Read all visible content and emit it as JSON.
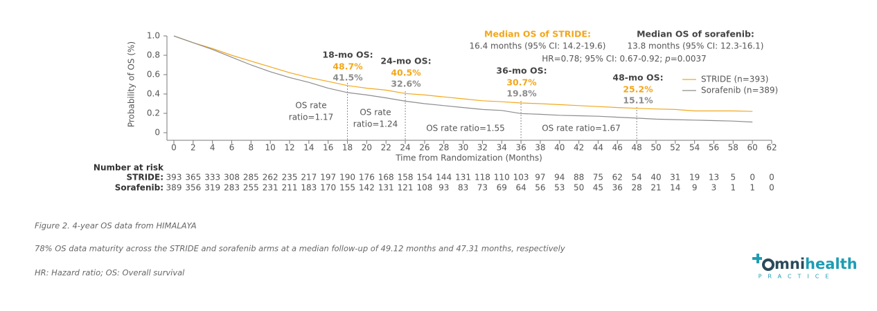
{
  "chart_data": {
    "type": "line",
    "x": [
      0,
      2,
      4,
      6,
      8,
      10,
      12,
      14,
      16,
      18,
      20,
      22,
      24,
      26,
      28,
      30,
      32,
      34,
      36,
      38,
      40,
      42,
      44,
      46,
      48,
      50,
      52,
      54,
      56,
      58,
      60
    ],
    "series": [
      {
        "name": "STRIDE (n=393)",
        "color": "#f2a71b",
        "values": [
          1.0,
          0.93,
          0.87,
          0.8,
          0.74,
          0.68,
          0.62,
          0.57,
          0.53,
          0.487,
          0.46,
          0.44,
          0.405,
          0.39,
          0.37,
          0.35,
          0.33,
          0.32,
          0.307,
          0.3,
          0.29,
          0.28,
          0.27,
          0.26,
          0.252,
          0.245,
          0.24,
          0.225,
          0.225,
          0.225,
          0.22
        ]
      },
      {
        "name": "Sorafenib (n=389)",
        "color": "#8c8c8c",
        "values": [
          1.0,
          0.93,
          0.86,
          0.78,
          0.7,
          0.63,
          0.57,
          0.52,
          0.46,
          0.415,
          0.39,
          0.36,
          0.326,
          0.3,
          0.28,
          0.26,
          0.24,
          0.23,
          0.198,
          0.19,
          0.18,
          0.175,
          0.17,
          0.16,
          0.151,
          0.14,
          0.135,
          0.13,
          0.125,
          0.12,
          0.11
        ]
      }
    ],
    "xlim": [
      0,
      62
    ],
    "xticks": [
      0,
      2,
      4,
      6,
      8,
      10,
      12,
      14,
      16,
      18,
      20,
      22,
      24,
      26,
      28,
      30,
      32,
      34,
      36,
      38,
      40,
      42,
      44,
      46,
      48,
      50,
      52,
      54,
      56,
      58,
      60,
      62
    ],
    "ylim": [
      0,
      1
    ],
    "yticks": [
      0,
      0.2,
      0.4,
      0.6,
      0.8,
      {
        "value": 1,
        "label": "1.0"
      }
    ],
    "x_label": "Time from Randomization (Months)",
    "y_label": "Probability of OS (%)",
    "milestones": [
      {
        "x": 18,
        "title": "18-mo OS:",
        "stride": "48.7%",
        "sorafenib": "41.5%"
      },
      {
        "x": 24,
        "title": "24-mo OS:",
        "stride": "40.5%",
        "sorafenib": "32.6%"
      },
      {
        "x": 36,
        "title": "36-mo OS:",
        "stride": "30.7%",
        "sorafenib": "19.8%"
      },
      {
        "x": 48,
        "title": "48-mo OS:",
        "stride": "25.2%",
        "sorafenib": "15.1%"
      }
    ],
    "ratios": [
      {
        "lines": [
          "OS rate",
          "ratio=1.17"
        ]
      },
      {
        "lines": [
          "OS rate",
          "ratio=1.24"
        ]
      },
      {
        "lines": [
          "OS rate ratio=1.55"
        ]
      },
      {
        "lines": [
          "OS rate ratio=1.67"
        ]
      }
    ],
    "medians": [
      {
        "title": "Median OS of STRIDE:",
        "text": "16.4 months (95% CI: 14.2-19.6)"
      },
      {
        "title": "Median OS of sorafenib:",
        "text": "13.8 months (95% CI: 12.3-16.1)"
      }
    ],
    "hr": [
      "HR=0.78; 95% CI: 0.67-0.92; ",
      "p",
      "=0.0037"
    ],
    "at_risk": {
      "title": "Number at risk",
      "rows": [
        {
          "label": "STRIDE:",
          "values": [
            393,
            365,
            333,
            308,
            285,
            262,
            235,
            217,
            197,
            190,
            176,
            168,
            158,
            154,
            144,
            131,
            118,
            110,
            103,
            97,
            94,
            88,
            75,
            62,
            54,
            40,
            31,
            19,
            13,
            5,
            0,
            0
          ]
        },
        {
          "label": "Sorafenib:",
          "values": [
            389,
            356,
            319,
            283,
            255,
            231,
            211,
            183,
            170,
            155,
            142,
            131,
            121,
            108,
            93,
            83,
            73,
            69,
            64,
            56,
            53,
            50,
            45,
            36,
            28,
            21,
            14,
            9,
            3,
            1,
            1,
            0
          ]
        }
      ]
    }
  },
  "captions": [
    "Figure 2. 4-year OS data from HIMALAYA",
    "78% OS data maturity across the STRIDE and sorafenib arms at a median follow-up of 49.12 months and 47.31 months, respectively",
    "HR: Hazard ratio; OS: Overall survival"
  ],
  "logo": {
    "brand_a": "mni",
    "brand_b": "health",
    "tagline": "PRACTICE"
  }
}
